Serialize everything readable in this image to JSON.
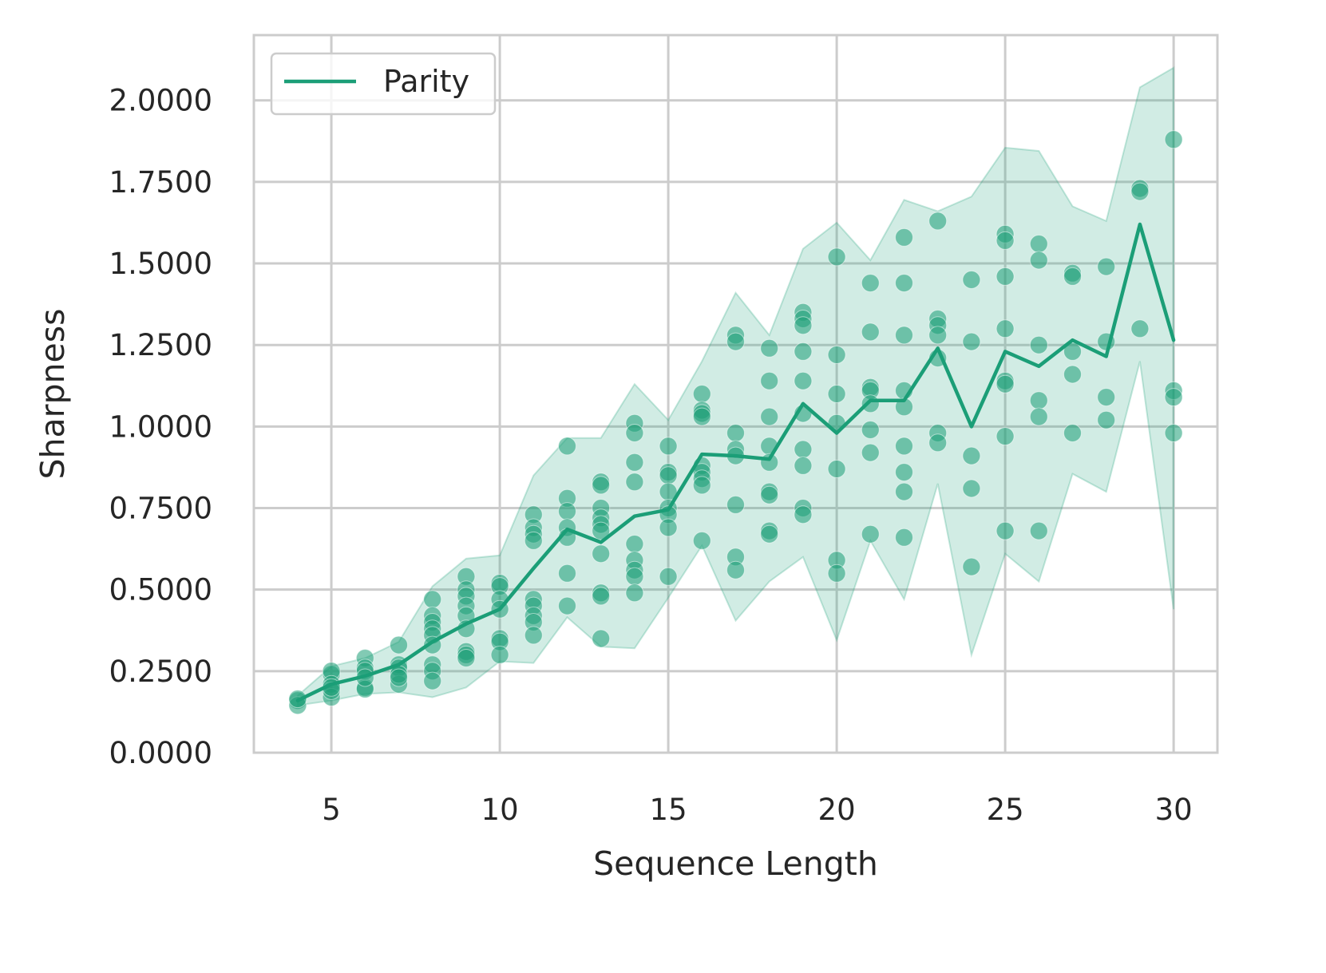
{
  "chart_data": {
    "type": "line",
    "xlabel": "Sequence Length",
    "ylabel": "Sharpness",
    "xlim": [
      2.7,
      31.3
    ],
    "ylim": [
      0,
      2.2
    ],
    "x_ticks": [
      5,
      10,
      15,
      20,
      25,
      30
    ],
    "x_tick_labels": [
      "5",
      "10",
      "15",
      "20",
      "25",
      "30"
    ],
    "y_ticks": [
      0,
      0.25,
      0.5,
      0.75,
      1.0,
      1.25,
      1.5,
      1.75,
      2.0
    ],
    "y_tick_labels": [
      "0.0000",
      "0.2500",
      "0.5000",
      "0.7500",
      "1.0000",
      "1.2500",
      "1.5000",
      "1.7500",
      "2.0000"
    ],
    "grid": true,
    "legend_position": "top-left",
    "colors": {
      "series": "#1b9e77",
      "band": "#1b9e77",
      "grid": "#cccccc",
      "frame": "#cccccc"
    },
    "series": [
      {
        "name": "Parity",
        "x": [
          4,
          5,
          6,
          7,
          8,
          9,
          10,
          11,
          12,
          13,
          14,
          15,
          16,
          17,
          18,
          19,
          20,
          21,
          22,
          23,
          24,
          25,
          26,
          27,
          28,
          29,
          30
        ],
        "values": [
          0.16,
          0.21,
          0.235,
          0.27,
          0.34,
          0.395,
          0.44,
          0.565,
          0.685,
          0.645,
          0.725,
          0.745,
          0.915,
          0.91,
          0.9,
          1.07,
          0.98,
          1.08,
          1.08,
          1.24,
          1.0,
          1.23,
          1.185,
          1.265,
          1.215,
          1.62,
          1.265
        ],
        "band_lower": [
          0.145,
          0.16,
          0.18,
          0.185,
          0.17,
          0.2,
          0.28,
          0.275,
          0.415,
          0.325,
          0.32,
          0.475,
          0.635,
          0.405,
          0.525,
          0.6,
          0.345,
          0.65,
          0.47,
          0.825,
          0.3,
          0.61,
          0.525,
          0.855,
          0.8,
          1.2,
          0.44
        ],
        "band_upper": [
          0.175,
          0.265,
          0.29,
          0.34,
          0.51,
          0.595,
          0.605,
          0.85,
          0.965,
          0.965,
          1.13,
          1.02,
          1.2,
          1.41,
          1.28,
          1.545,
          1.625,
          1.51,
          1.695,
          1.66,
          1.705,
          1.855,
          1.845,
          1.675,
          1.63,
          2.04,
          2.1
        ]
      }
    ],
    "points": {
      "4": [
        0.16,
        0.145,
        0.165
      ],
      "5": [
        0.24,
        0.25,
        0.21,
        0.17,
        0.19,
        0.2
      ],
      "6": [
        0.29,
        0.26,
        0.2,
        0.25,
        0.195,
        0.23
      ],
      "7": [
        0.33,
        0.27,
        0.26,
        0.21,
        0.24,
        0.23
      ],
      "8": [
        0.47,
        0.42,
        0.4,
        0.38,
        0.36,
        0.27,
        0.25,
        0.22,
        0.33
      ],
      "9": [
        0.54,
        0.5,
        0.48,
        0.45,
        0.42,
        0.38,
        0.31,
        0.3,
        0.29
      ],
      "10": [
        0.52,
        0.51,
        0.47,
        0.44,
        0.35,
        0.34,
        0.3
      ],
      "11": [
        0.73,
        0.69,
        0.67,
        0.65,
        0.47,
        0.45,
        0.42,
        0.4,
        0.36
      ],
      "12": [
        0.94,
        0.78,
        0.74,
        0.69,
        0.66,
        0.55,
        0.45
      ],
      "13": [
        0.83,
        0.82,
        0.75,
        0.72,
        0.7,
        0.68,
        0.61,
        0.49,
        0.48,
        0.35
      ],
      "14": [
        1.01,
        0.98,
        0.89,
        0.83,
        0.64,
        0.59,
        0.56,
        0.54,
        0.49
      ],
      "15": [
        0.94,
        0.86,
        0.85,
        0.8,
        0.75,
        0.73,
        0.69,
        0.54
      ],
      "16": [
        1.1,
        1.05,
        1.04,
        1.03,
        0.88,
        0.86,
        0.84,
        0.82,
        0.65
      ],
      "17": [
        1.28,
        1.26,
        0.98,
        0.93,
        0.91,
        0.76,
        0.6,
        0.56
      ],
      "18": [
        1.24,
        1.14,
        1.03,
        0.94,
        0.89,
        0.8,
        0.79,
        0.68,
        0.67
      ],
      "19": [
        1.35,
        1.33,
        1.31,
        1.23,
        1.14,
        1.04,
        0.93,
        0.88,
        0.75,
        0.73
      ],
      "20": [
        1.52,
        1.22,
        1.1,
        1.01,
        0.87,
        0.59,
        0.55
      ],
      "21": [
        1.44,
        1.29,
        1.12,
        1.11,
        1.07,
        0.99,
        0.92,
        0.67
      ],
      "22": [
        1.58,
        1.44,
        1.28,
        1.11,
        1.06,
        0.94,
        0.86,
        0.8,
        0.66
      ],
      "23": [
        1.63,
        1.33,
        1.31,
        1.28,
        1.21,
        0.98,
        0.95
      ],
      "24": [
        1.45,
        1.26,
        0.91,
        0.81,
        0.57
      ],
      "25": [
        1.59,
        1.57,
        1.46,
        1.3,
        1.14,
        1.13,
        0.97,
        0.68
      ],
      "26": [
        1.56,
        1.51,
        1.25,
        1.08,
        1.03,
        0.68
      ],
      "27": [
        1.47,
        1.46,
        1.23,
        1.16,
        0.98
      ],
      "28": [
        1.49,
        1.26,
        1.09,
        1.02
      ],
      "29": [
        1.73,
        1.72,
        1.3
      ],
      "30": [
        1.88,
        1.11,
        1.09,
        0.98
      ]
    }
  }
}
